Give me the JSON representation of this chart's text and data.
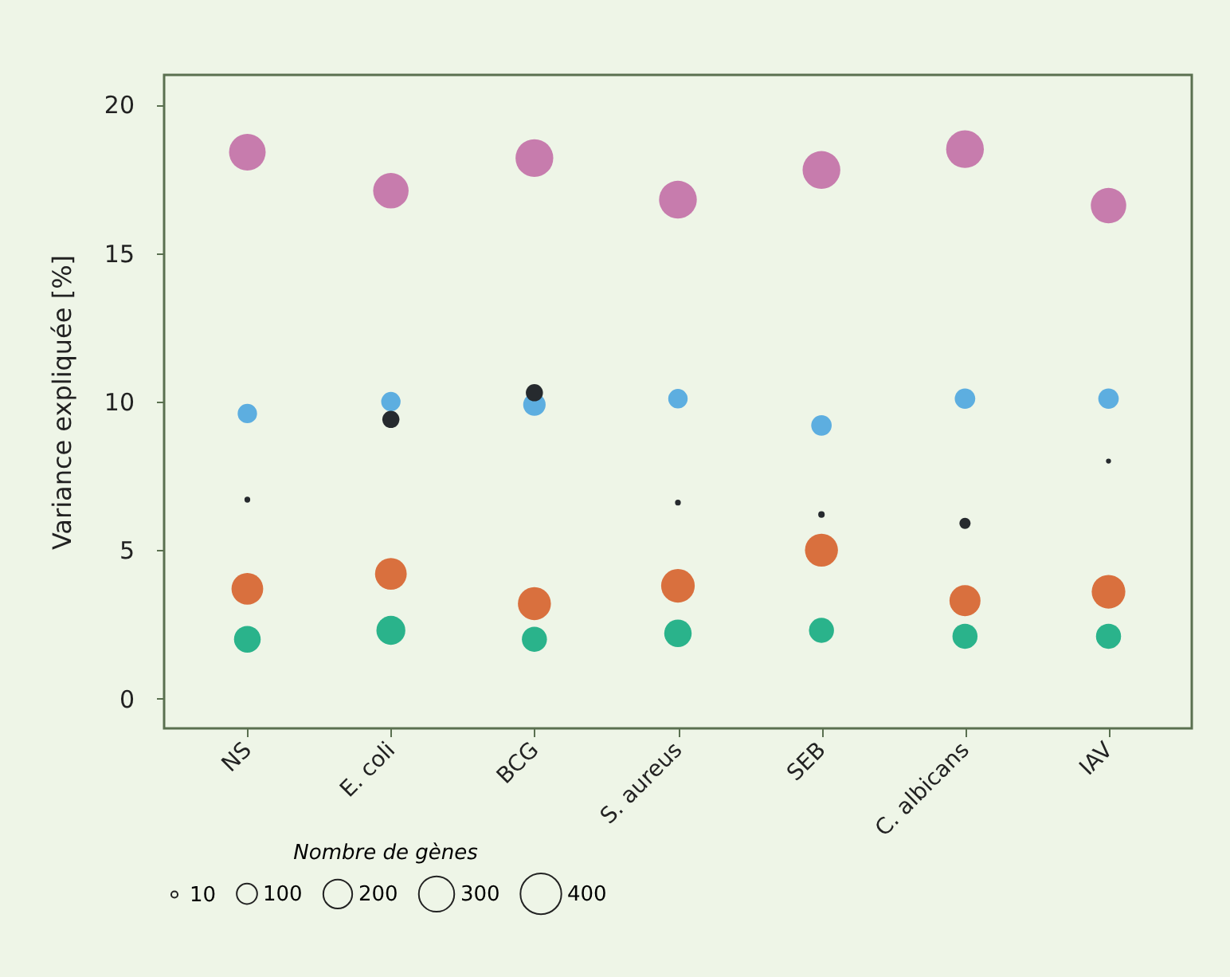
{
  "chart_data": {
    "type": "bubble",
    "ylabel": "Variance expliquée [%]",
    "legend_title": "Nombre de gènes",
    "size_legend": [
      10,
      100,
      200,
      300,
      400
    ],
    "categories": [
      "NS",
      "E. coli",
      "BCG",
      "S. aureus",
      "SEB",
      "C. albicans",
      "IAV"
    ],
    "ylim": [
      -1,
      21
    ],
    "yticks": [
      0,
      5,
      10,
      15,
      20
    ],
    "grid": false,
    "series": [
      {
        "color": "#c77cad",
        "values": [
          18.4,
          17.1,
          18.2,
          16.8,
          17.8,
          18.5,
          16.6
        ],
        "sizes": [
          320,
          300,
          340,
          340,
          340,
          340,
          300
        ]
      },
      {
        "color": "#5daee0",
        "values": [
          9.6,
          10.0,
          9.9,
          10.1,
          9.2,
          10.1,
          10.1
        ],
        "sizes": [
          90,
          90,
          120,
          90,
          100,
          100,
          100
        ]
      },
      {
        "color": "#262a2e",
        "values": [
          6.7,
          9.4,
          10.3,
          6.6,
          6.2,
          5.9,
          8.0
        ],
        "sizes": [
          8,
          70,
          70,
          8,
          10,
          30,
          6
        ]
      },
      {
        "color": "#d9703e",
        "values": [
          3.7,
          4.2,
          3.2,
          3.8,
          5.0,
          3.3,
          3.6
        ],
        "sizes": [
          240,
          240,
          260,
          270,
          260,
          230,
          270
        ]
      },
      {
        "color": "#2ab38b",
        "values": [
          2.0,
          2.3,
          2.0,
          2.2,
          2.3,
          2.1,
          2.1
        ],
        "sizes": [
          170,
          200,
          150,
          180,
          150,
          150,
          150
        ]
      }
    ]
  }
}
